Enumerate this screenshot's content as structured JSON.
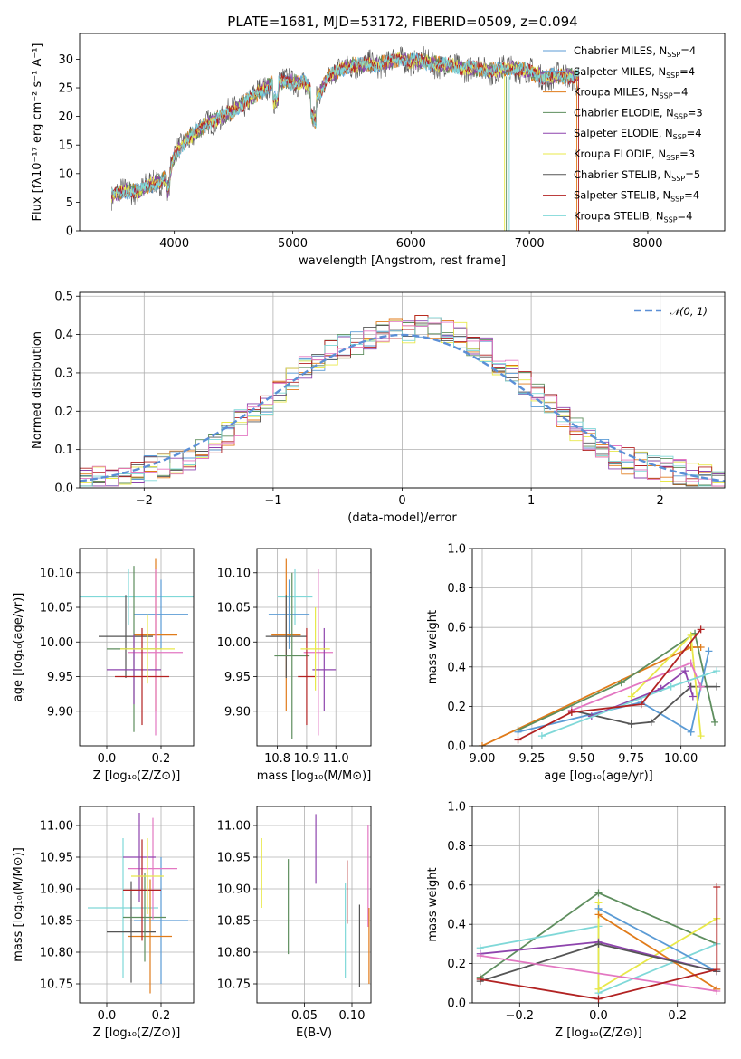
{
  "chart_data": [
    {
      "type": "line",
      "title": "PLATE=1681, MJD=53172, FIBERID=0509, z=0.094",
      "xlabel": "wavelength [Angstrom, rest frame]",
      "ylabel": "Flux [fλ10⁻¹⁷ erg cm⁻² s⁻¹ A⁻¹]",
      "xlim": [
        3200,
        8650
      ],
      "ylim": [
        0,
        34.5
      ],
      "xticks": [
        4000,
        5000,
        6000,
        7000,
        8000
      ],
      "yticks": [
        0,
        5,
        10,
        15,
        20,
        25,
        30
      ],
      "legend_position": "upper right",
      "spectrum_anchor": {
        "x": [
          3470,
          3600,
          3700,
          3800,
          3900,
          3950,
          4000,
          4100,
          4300,
          4500,
          4700,
          4850,
          5000,
          5100,
          5200,
          5300,
          5500,
          5700,
          5900,
          6100,
          6300,
          6500,
          6700,
          6900,
          7100,
          7300,
          7420
        ],
        "y": [
          6,
          7,
          7,
          8,
          9,
          10,
          13,
          16,
          19,
          21,
          24,
          26,
          26,
          26,
          23,
          27,
          29,
          29,
          30,
          29.5,
          29,
          28.5,
          28,
          28.5,
          27,
          27,
          27
        ]
      },
      "series": [
        {
          "name": "Chabrier MILES, N_SSP=4",
          "color": "#5b9bd5"
        },
        {
          "name": "Salpeter MILES, N_SSP=4",
          "color": "#5fa0dc"
        },
        {
          "name": "Kroupa MILES, N_SSP=4",
          "color": "#e07b1a"
        },
        {
          "name": "Chabrier ELODIE, N_SSP=3",
          "color": "#5e8e5e"
        },
        {
          "name": "Salpeter ELODIE, N_SSP=4",
          "color": "#8e44ad"
        },
        {
          "name": "Kroupa ELODIE, N_SSP=3",
          "color": "#e8e84a"
        },
        {
          "name": "Chabrier STELIB, N_SSP=5",
          "color": "#555555"
        },
        {
          "name": "Salpeter STELIB, N_SSP=4",
          "color": "#b22222"
        },
        {
          "name": "Kroupa STELIB, N_SSP=4",
          "color": "#7fd8d8"
        }
      ]
    },
    {
      "type": "line",
      "xlabel": "(data-model)/error",
      "ylabel": "Normed distribution",
      "xlim": [
        -2.5,
        2.5
      ],
      "ylim": [
        0,
        0.51
      ],
      "xticks": [
        -2,
        -1,
        0,
        1,
        2
      ],
      "yticks": [
        0.0,
        0.1,
        0.2,
        0.3,
        0.4,
        0.5
      ],
      "grid": true,
      "legend_position": "upper right",
      "series": [
        {
          "name": "𝒩(0, 1)",
          "color": "#5b8fd6",
          "style": "dashed"
        }
      ],
      "histograms": {
        "bin_width": 0.1,
        "bin_start": -2.5,
        "base": [
          0.02,
          0.025,
          0.03,
          0.04,
          0.04,
          0.05,
          0.06,
          0.07,
          0.08,
          0.1,
          0.12,
          0.14,
          0.17,
          0.19,
          0.22,
          0.25,
          0.28,
          0.31,
          0.33,
          0.35,
          0.37,
          0.38,
          0.39,
          0.4,
          0.41,
          0.41,
          0.42,
          0.41,
          0.41,
          0.4,
          0.38,
          0.36,
          0.33,
          0.3,
          0.27,
          0.24,
          0.21,
          0.18,
          0.15,
          0.12,
          0.1,
          0.08,
          0.07,
          0.06,
          0.05,
          0.05,
          0.04,
          0.03,
          0.03,
          0.02
        ],
        "colors": [
          "#5b9bd5",
          "#e07b1a",
          "#5e8e5e",
          "#8e44ad",
          "#e8e84a",
          "#555555",
          "#b22222",
          "#7fd8d8",
          "#e377c2"
        ]
      }
    },
    {
      "type": "scatter",
      "xlabel": "Z [log₁₀(Z/Z⊙)]",
      "ylabel": "age  [log₁₀(age/yr)]",
      "xlim": [
        -0.1,
        0.32
      ],
      "ylim": [
        9.85,
        10.135
      ],
      "xticks": [
        0.0,
        0.2
      ],
      "yticks": [
        9.9,
        9.95,
        10.0,
        10.05,
        10.1
      ],
      "grid": true,
      "points": [
        {
          "color": "#7fd8d8",
          "x": 0.08,
          "y": 10.065,
          "xerr": 0.24,
          "yerr": 0.04
        },
        {
          "color": "#5b9bd5",
          "x": 0.2,
          "y": 10.04,
          "xerr": 0.1,
          "yerr": 0.05
        },
        {
          "color": "#e07b1a",
          "x": 0.18,
          "y": 10.01,
          "xerr": 0.08,
          "yerr": 0.11
        },
        {
          "color": "#555555",
          "x": 0.07,
          "y": 10.008,
          "xerr": 0.1,
          "yerr": 0.06
        },
        {
          "color": "#5e8e5e",
          "x": 0.1,
          "y": 9.99,
          "xerr": 0.1,
          "yerr": 0.12
        },
        {
          "color": "#e377c2",
          "x": 0.18,
          "y": 9.985,
          "xerr": 0.1,
          "yerr": 0.12
        },
        {
          "color": "#8e44ad",
          "x": 0.1,
          "y": 9.96,
          "xerr": 0.1,
          "yerr": 0.05
        },
        {
          "color": "#b22222",
          "x": 0.13,
          "y": 9.95,
          "xerr": 0.1,
          "yerr": 0.07
        },
        {
          "color": "#e8e84a",
          "x": 0.15,
          "y": 9.99,
          "xerr": 0.1,
          "yerr": 0.05
        }
      ]
    },
    {
      "type": "scatter",
      "xlabel": "mass [log₁₀(M/M⊙)]",
      "xlim": [
        10.73,
        11.12
      ],
      "ylim": [
        9.85,
        10.135
      ],
      "xticks": [
        10.8,
        10.9,
        11.0
      ],
      "yticks": [
        9.9,
        9.95,
        10.0,
        10.05,
        10.1
      ],
      "grid": true,
      "points": [
        {
          "color": "#7fd8d8",
          "x": 10.86,
          "y": 10.065,
          "xerr": 0.06,
          "yerr": 0.04
        },
        {
          "color": "#5b9bd5",
          "x": 10.84,
          "y": 10.04,
          "xerr": 0.07,
          "yerr": 0.05
        },
        {
          "color": "#e07b1a",
          "x": 10.83,
          "y": 10.01,
          "xerr": 0.05,
          "yerr": 0.11
        },
        {
          "color": "#555555",
          "x": 10.83,
          "y": 10.008,
          "xerr": 0.07,
          "yerr": 0.06
        },
        {
          "color": "#5e8e5e",
          "x": 10.85,
          "y": 9.98,
          "xerr": 0.06,
          "yerr": 0.12
        },
        {
          "color": "#e377c2",
          "x": 10.94,
          "y": 9.985,
          "xerr": 0.05,
          "yerr": 0.12
        },
        {
          "color": "#8e44ad",
          "x": 10.96,
          "y": 9.96,
          "xerr": 0.04,
          "yerr": 0.06
        },
        {
          "color": "#b22222",
          "x": 10.9,
          "y": 9.95,
          "xerr": 0.03,
          "yerr": 0.07
        },
        {
          "color": "#e8e84a",
          "x": 10.93,
          "y": 9.99,
          "xerr": 0.05,
          "yerr": 0.06
        }
      ]
    },
    {
      "type": "line",
      "xlabel": "age  [log₁₀(age/yr)]",
      "ylabel": "mass weight",
      "xlim": [
        8.95,
        10.22
      ],
      "ylim": [
        0,
        1.0
      ],
      "xticks": [
        9.0,
        9.25,
        9.5,
        9.75,
        10.0
      ],
      "yticks": [
        0.0,
        0.2,
        0.4,
        0.6,
        0.8,
        1.0
      ],
      "grid": true,
      "series": [
        {
          "color": "#e07b1a",
          "x": [
            9.0,
            10.05,
            10.1
          ],
          "y": [
            0.0,
            0.5,
            0.5
          ]
        },
        {
          "color": "#5e8e5e",
          "x": [
            9.18,
            9.7,
            10.07,
            10.17
          ],
          "y": [
            0.08,
            0.32,
            0.57,
            0.12
          ]
        },
        {
          "color": "#5b9bd5",
          "x": [
            9.18,
            9.8,
            10.05,
            10.14
          ],
          "y": [
            0.07,
            0.22,
            0.07,
            0.48
          ]
        },
        {
          "color": "#555555",
          "x": [
            9.45,
            9.75,
            9.85,
            10.05,
            10.18
          ],
          "y": [
            0.18,
            0.11,
            0.12,
            0.3,
            0.3
          ]
        },
        {
          "color": "#e8e84a",
          "x": [
            9.75,
            10.05,
            10.1
          ],
          "y": [
            0.25,
            0.56,
            0.05
          ]
        },
        {
          "color": "#8e44ad",
          "x": [
            9.55,
            9.9,
            10.02,
            10.06
          ],
          "y": [
            0.15,
            0.29,
            0.38,
            0.25
          ]
        },
        {
          "color": "#e377c2",
          "x": [
            9.45,
            10.05,
            10.1
          ],
          "y": [
            0.18,
            0.42,
            0.3
          ]
        },
        {
          "color": "#7fd8d8",
          "x": [
            9.3,
            9.95,
            10.18
          ],
          "y": [
            0.05,
            0.3,
            0.38
          ]
        },
        {
          "color": "#b22222",
          "x": [
            9.18,
            9.45,
            9.8,
            10.1
          ],
          "y": [
            0.03,
            0.17,
            0.21,
            0.59
          ]
        }
      ]
    },
    {
      "type": "scatter",
      "xlabel": "Z [log₁₀(Z/Z⊙)]",
      "ylabel": "mass [log₁₀(M/M⊙)]",
      "xlim": [
        -0.1,
        0.32
      ],
      "ylim": [
        10.72,
        11.03
      ],
      "xticks": [
        0.0,
        0.2
      ],
      "yticks": [
        10.75,
        10.8,
        10.85,
        10.9,
        10.95,
        11.0
      ],
      "grid": true,
      "points": [
        {
          "color": "#7fd8d8",
          "x": 0.06,
          "y": 10.87,
          "xerr": 0.13,
          "yerr": 0.11
        },
        {
          "color": "#5b9bd5",
          "x": 0.2,
          "y": 10.85,
          "xerr": 0.1,
          "yerr": 0.1
        },
        {
          "color": "#e07b1a",
          "x": 0.16,
          "y": 10.825,
          "xerr": 0.08,
          "yerr": 0.09
        },
        {
          "color": "#555555",
          "x": 0.09,
          "y": 10.832,
          "xerr": 0.09,
          "yerr": 0.08
        },
        {
          "color": "#5e8e5e",
          "x": 0.14,
          "y": 10.855,
          "xerr": 0.08,
          "yerr": 0.07
        },
        {
          "color": "#e377c2",
          "x": 0.17,
          "y": 10.932,
          "xerr": 0.09,
          "yerr": 0.08
        },
        {
          "color": "#8e44ad",
          "x": 0.12,
          "y": 10.95,
          "xerr": 0.06,
          "yerr": 0.07
        },
        {
          "color": "#b22222",
          "x": 0.13,
          "y": 10.898,
          "xerr": 0.07,
          "yerr": 0.08
        },
        {
          "color": "#e8e84a",
          "x": 0.15,
          "y": 10.92,
          "xerr": 0.06,
          "yerr": 0.06
        }
      ]
    },
    {
      "type": "scatter",
      "xlabel": "E(B-V)",
      "xlim": [
        0.0,
        0.12
      ],
      "ylim": [
        10.72,
        11.03
      ],
      "xticks": [
        0.05,
        0.1
      ],
      "yticks": [
        10.75,
        10.8,
        10.85,
        10.9,
        10.95,
        11.0
      ],
      "grid": true,
      "points": [
        {
          "color": "#e8e84a",
          "x": 0.005,
          "y": 10.925,
          "yerr": 0.055
        },
        {
          "color": "#5e8e5e",
          "x": 0.033,
          "y": 10.872,
          "yerr": 0.075
        },
        {
          "color": "#8e44ad",
          "x": 0.062,
          "y": 10.963,
          "yerr": 0.055
        },
        {
          "color": "#7fd8d8",
          "x": 0.093,
          "y": 10.835,
          "yerr": 0.075
        },
        {
          "color": "#b22222",
          "x": 0.095,
          "y": 10.895,
          "yerr": 0.05
        },
        {
          "color": "#555555",
          "x": 0.108,
          "y": 10.81,
          "yerr": 0.065
        },
        {
          "color": "#e377c2",
          "x": 0.117,
          "y": 10.92,
          "yerr": 0.08
        },
        {
          "color": "#e07b1a",
          "x": 0.118,
          "y": 10.81,
          "yerr": 0.06
        }
      ]
    },
    {
      "type": "line",
      "xlabel": "Z [log₁₀(Z/Z⊙)]",
      "ylabel": "mass weight",
      "xlim": [
        -0.32,
        0.32
      ],
      "ylim": [
        0,
        1.0
      ],
      "xticks": [
        -0.2,
        0.0,
        0.2
      ],
      "yticks": [
        0.0,
        0.2,
        0.4,
        0.6,
        0.8,
        1.0
      ],
      "grid": true,
      "series": [
        {
          "color": "#5e8e5e",
          "x": [
            -0.3,
            0.0,
            0.3
          ],
          "y": [
            0.13,
            0.56,
            0.3
          ]
        },
        {
          "color": "#7fd8d8",
          "x": [
            -0.3,
            0.0,
            0.0,
            0.3
          ],
          "y": [
            0.28,
            0.39,
            0.05,
            0.3
          ]
        },
        {
          "color": "#e8e84a",
          "x": [
            0.0,
            0.0,
            0.3
          ],
          "y": [
            0.51,
            0.07,
            0.43
          ]
        },
        {
          "color": "#5b9bd5",
          "x": [
            0.0,
            0.3
          ],
          "y": [
            0.48,
            0.16
          ]
        },
        {
          "color": "#e07b1a",
          "x": [
            0.0,
            0.3
          ],
          "y": [
            0.45,
            0.07
          ]
        },
        {
          "color": "#8e44ad",
          "x": [
            -0.3,
            0.0,
            0.3
          ],
          "y": [
            0.25,
            0.31,
            0.16
          ]
        },
        {
          "color": "#555555",
          "x": [
            -0.3,
            0.0,
            0.3
          ],
          "y": [
            0.11,
            0.3,
            0.16
          ]
        },
        {
          "color": "#e377c2",
          "x": [
            -0.3,
            0.3
          ],
          "y": [
            0.24,
            0.06
          ]
        },
        {
          "color": "#b22222",
          "x": [
            -0.3,
            0.0,
            0.3,
            0.3
          ],
          "y": [
            0.12,
            0.02,
            0.17,
            0.59
          ]
        }
      ]
    }
  ]
}
